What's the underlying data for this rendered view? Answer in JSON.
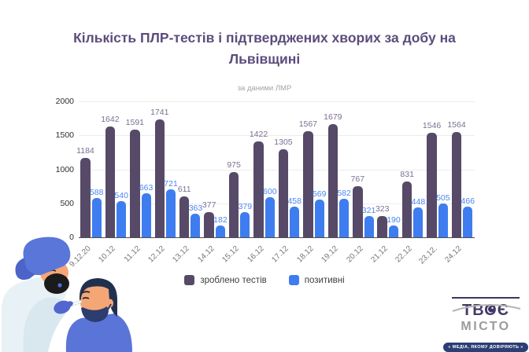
{
  "title": "Кількість ПЛР-тестів і підтверджених хворих за добу на Львівщині",
  "subtitle": "за даними ЛМР",
  "colors": {
    "tests": "#564a68",
    "positive": "#3e7df0",
    "tests_label": "#7a7092",
    "positive_label": "#4b86f2",
    "title": "#5b4d7c"
  },
  "chart_data": {
    "type": "bar",
    "title": "Кількість ПЛР-тестів і підтверджених хворих за добу на Львівщині",
    "subtitle": "за даними ЛМР",
    "categories": [
      "9.12.20",
      "10.12",
      "11.12",
      "12.12",
      "13.12",
      "14.12",
      "15.12",
      "16.12",
      "17.12",
      "18.12",
      "19.12",
      "20.12",
      "21.12",
      "22.12",
      "23.12.",
      "24.12"
    ],
    "series": [
      {
        "name": "зроблено тестів",
        "values": [
          1184,
          1642,
          1591,
          1741,
          611,
          377,
          975,
          1422,
          1305,
          1567,
          1679,
          767,
          323,
          831,
          1546,
          1564
        ]
      },
      {
        "name": "позитивні",
        "values": [
          588,
          540,
          663,
          721,
          363,
          182,
          379,
          600,
          458,
          569,
          582,
          321,
          190,
          448,
          505,
          466
        ]
      }
    ],
    "xlabel": "",
    "ylabel": "",
    "ylim": [
      0,
      2000
    ],
    "yticks": [
      0,
      500,
      1000,
      1500,
      2000
    ],
    "grid": true,
    "legend_position": "bottom"
  },
  "logo": {
    "line1": "ТВОЄ",
    "line2": "МІСТО",
    "tagline": "« МЕДІА, ЯКОМУ ДОВІРЯЮТЬ »"
  }
}
